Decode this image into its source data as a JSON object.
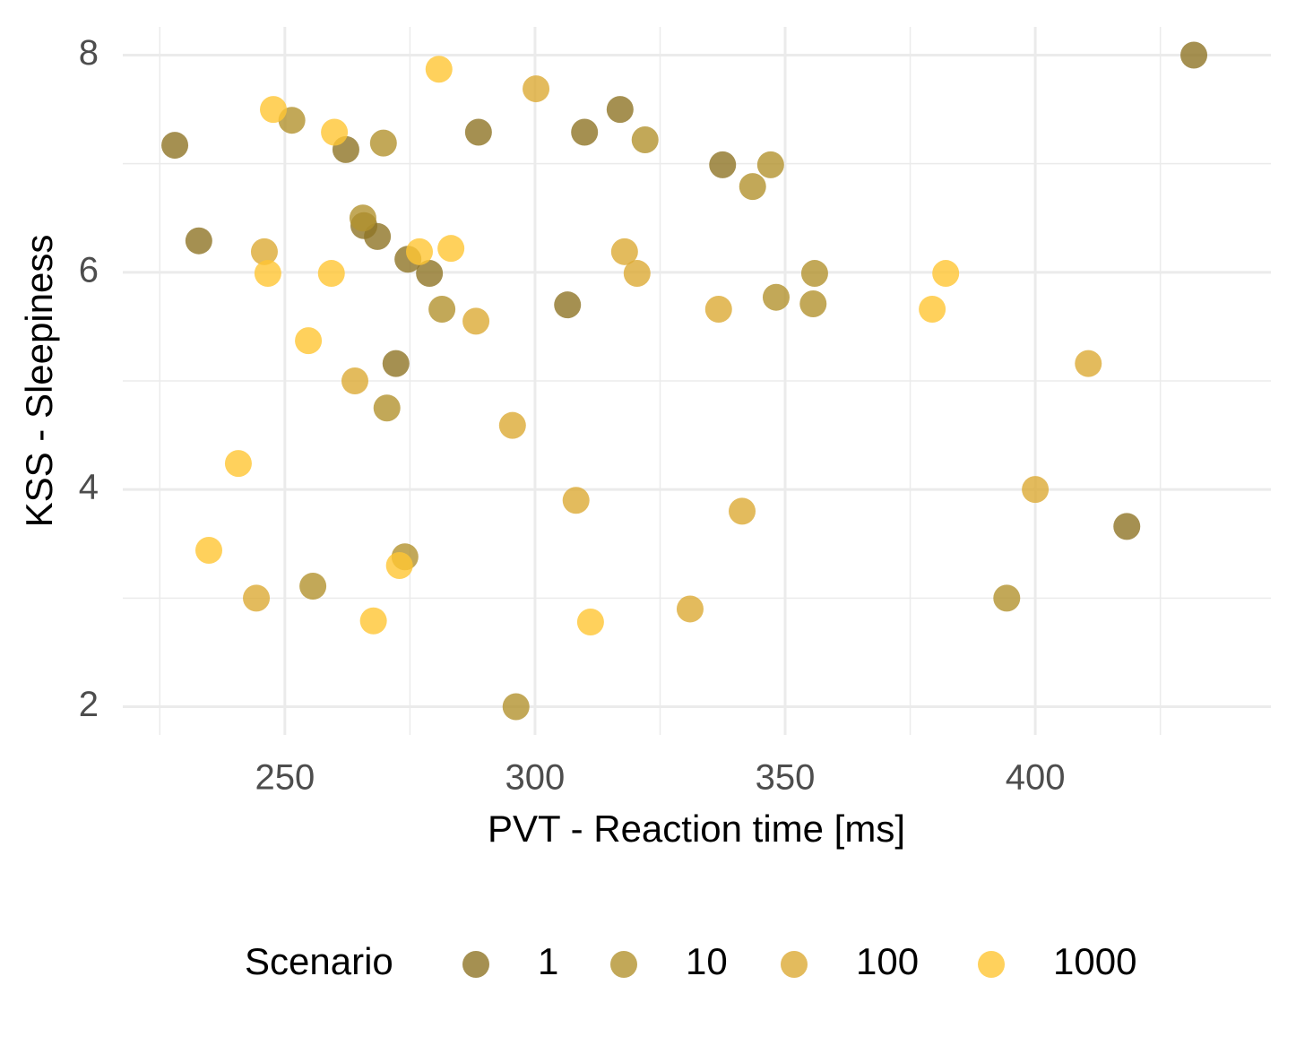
{
  "chart_data": {
    "type": "scatter",
    "x_label": "PVT - Reaction time [ms]",
    "y_label": "KSS - Sleepiness",
    "legend_title": "Scenario",
    "legend_position": "bottom",
    "grid": true,
    "opacity": 0.8,
    "xlim": [
      217.6,
      447.1
    ],
    "ylim": [
      1.74,
      8.26
    ],
    "xticks": [
      250,
      300,
      350,
      400
    ],
    "yticks": [
      2,
      4,
      6,
      8
    ],
    "x_minor_ticks": [
      225,
      275,
      325,
      375,
      425
    ],
    "y_minor_ticks": [
      3,
      5,
      7
    ],
    "series": [
      {
        "name": "1",
        "color": "#8f7425",
        "x": [
          228.0,
          232.8,
          262.2,
          265.8,
          268.5,
          272.2,
          274.6,
          278.9,
          288.7,
          306.5,
          309.9,
          317.0,
          337.5,
          418.3,
          431.7
        ],
        "values": [
          7.17,
          6.29,
          7.13,
          6.43,
          6.33,
          5.16,
          6.12,
          5.99,
          7.29,
          5.7,
          7.29,
          7.5,
          6.99,
          3.66,
          8.0
        ]
      },
      {
        "name": "10",
        "color": "#b3922e",
        "x": [
          251.4,
          255.6,
          265.6,
          269.7,
          270.4,
          274.0,
          281.4,
          296.2,
          322.0,
          343.5,
          347.1,
          348.2,
          355.6,
          355.9,
          394.3
        ],
        "values": [
          7.4,
          3.11,
          6.5,
          7.19,
          4.75,
          3.38,
          5.66,
          2.0,
          7.22,
          6.79,
          6.99,
          5.77,
          5.71,
          5.99,
          3.0
        ]
      },
      {
        "name": "100",
        "color": "#dcaa35",
        "x": [
          244.3,
          245.9,
          264.0,
          288.2,
          295.5,
          300.2,
          308.2,
          317.9,
          320.4,
          331.0,
          336.7,
          341.4,
          400.0,
          410.6
        ],
        "values": [
          3.0,
          6.19,
          5.0,
          5.55,
          4.59,
          7.69,
          3.9,
          6.19,
          5.99,
          2.9,
          5.66,
          3.8,
          4.0,
          5.16
        ]
      },
      {
        "name": "1000",
        "color": "#ffc533",
        "x": [
          234.8,
          240.7,
          246.6,
          247.7,
          254.7,
          259.3,
          259.9,
          267.7,
          272.9,
          276.9,
          280.8,
          283.2,
          311.1,
          379.4,
          382.1
        ],
        "values": [
          3.44,
          4.24,
          5.99,
          7.5,
          5.37,
          5.99,
          7.29,
          2.79,
          3.3,
          6.19,
          7.87,
          6.22,
          2.78,
          5.66,
          5.99
        ]
      }
    ]
  }
}
